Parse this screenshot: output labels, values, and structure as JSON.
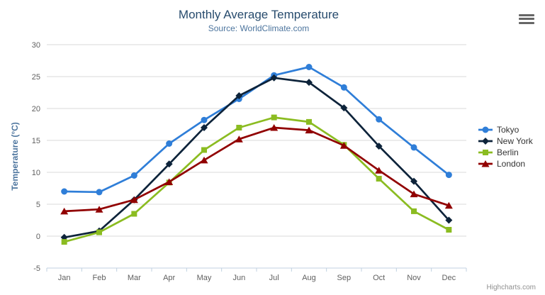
{
  "chart": {
    "title": "Monthly Average Temperature",
    "subtitle": "Source: WorldClimate.com",
    "credits": "Highcharts.com"
  },
  "chart_data": {
    "type": "line",
    "title": "Monthly Average Temperature",
    "subtitle": "Source: WorldClimate.com",
    "xlabel": "",
    "ylabel": "Temperature (°C)",
    "categories": [
      "Jan",
      "Feb",
      "Mar",
      "Apr",
      "May",
      "Jun",
      "Jul",
      "Aug",
      "Sep",
      "Oct",
      "Nov",
      "Dec"
    ],
    "ylim": [
      -5,
      30
    ],
    "ytick_step": 5,
    "yticks": [
      -5,
      0,
      5,
      10,
      15,
      20,
      25,
      30
    ],
    "grid": true,
    "legend_position": "right",
    "series": [
      {
        "name": "Tokyo",
        "marker": "circle",
        "color": "#2f7ed8",
        "values": [
          7.0,
          6.9,
          9.5,
          14.5,
          18.2,
          21.5,
          25.2,
          26.5,
          23.3,
          18.3,
          13.9,
          9.6
        ]
      },
      {
        "name": "New York",
        "marker": "diamond",
        "color": "#0d233a",
        "values": [
          -0.2,
          0.8,
          5.7,
          11.3,
          17.0,
          22.0,
          24.8,
          24.1,
          20.1,
          14.1,
          8.6,
          2.5
        ]
      },
      {
        "name": "Berlin",
        "marker": "square",
        "color": "#8bbc21",
        "values": [
          -0.9,
          0.6,
          3.5,
          8.4,
          13.5,
          17.0,
          18.6,
          17.9,
          14.3,
          9.0,
          3.9,
          1.0
        ]
      },
      {
        "name": "London",
        "marker": "triangle",
        "color": "#910000",
        "values": [
          3.9,
          4.2,
          5.7,
          8.5,
          11.9,
          15.2,
          17.0,
          16.6,
          14.2,
          10.3,
          6.6,
          4.8
        ]
      }
    ],
    "colors": {
      "grid_line": "#d8d8d8",
      "axis_line": "#c0d0e0",
      "axis_label": "#606060",
      "axis_title": "#4d759e",
      "title": "#274b6d",
      "subtitle": "#4d759e",
      "legend_text": "#333333"
    }
  }
}
